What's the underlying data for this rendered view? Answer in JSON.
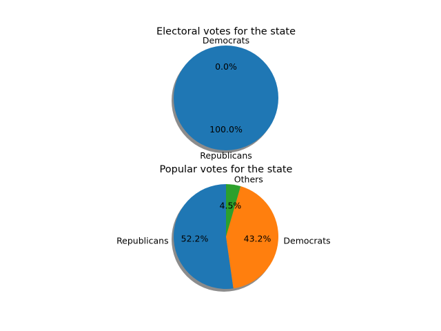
{
  "chart_data": [
    {
      "type": "pie",
      "title": "Electoral votes for the state",
      "labels": [
        "Republicans",
        "Democrats"
      ],
      "values": [
        100.0,
        0.0
      ],
      "percent_labels": [
        "100.0%",
        "0.0%"
      ],
      "colors": [
        "#1f77b4",
        "#ff7f0e"
      ],
      "start_angle_deg": 90,
      "direction": "counterclockwise",
      "shadow": true
    },
    {
      "type": "pie",
      "title": "Popular votes for the state",
      "labels": [
        "Republicans",
        "Democrats",
        "Others"
      ],
      "values": [
        52.2,
        43.2,
        4.5
      ],
      "percent_labels": [
        "52.2%",
        "43.2%",
        "4.5%"
      ],
      "colors": [
        "#1f77b4",
        "#ff7f0e",
        "#2ca02c"
      ],
      "start_angle_deg": 90,
      "direction": "counterclockwise",
      "shadow": true
    }
  ]
}
